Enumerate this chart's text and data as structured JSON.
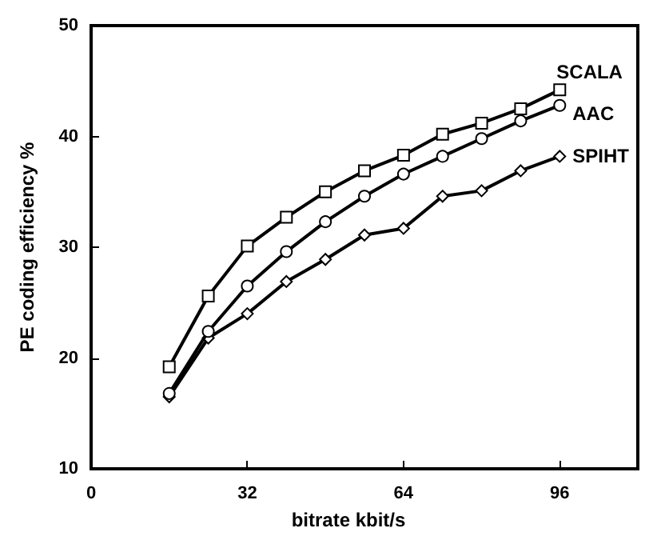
{
  "chart_data": {
    "type": "line",
    "xlabel": "bitrate kbit/s",
    "ylabel": "PE coding efficiency %",
    "xlim": [
      0,
      112
    ],
    "xticks": [
      0,
      32,
      64,
      96
    ],
    "ylim": [
      10,
      50
    ],
    "yticks": [
      10,
      20,
      30,
      40,
      50
    ],
    "grid": false,
    "legend": false,
    "x": [
      16,
      24,
      32,
      40,
      48,
      56,
      64,
      72,
      80,
      88,
      96
    ],
    "series": [
      {
        "name": "SCALA",
        "color": "#000000",
        "marker": "square",
        "values": [
          19.2,
          25.6,
          30.1,
          32.7,
          35.0,
          36.9,
          38.3,
          40.2,
          41.2,
          42.5,
          44.2
        ]
      },
      {
        "name": "AAC",
        "color": "#000000",
        "marker": "circle",
        "values": [
          16.8,
          22.4,
          26.5,
          29.6,
          32.3,
          34.6,
          36.6,
          38.2,
          39.8,
          41.4,
          42.8
        ]
      },
      {
        "name": "SPIHT",
        "color": "#000000",
        "marker": "diamond",
        "values": [
          16.5,
          21.8,
          24.0,
          26.9,
          28.9,
          31.1,
          31.7,
          34.6,
          35.1,
          36.9,
          38.2
        ]
      }
    ]
  }
}
